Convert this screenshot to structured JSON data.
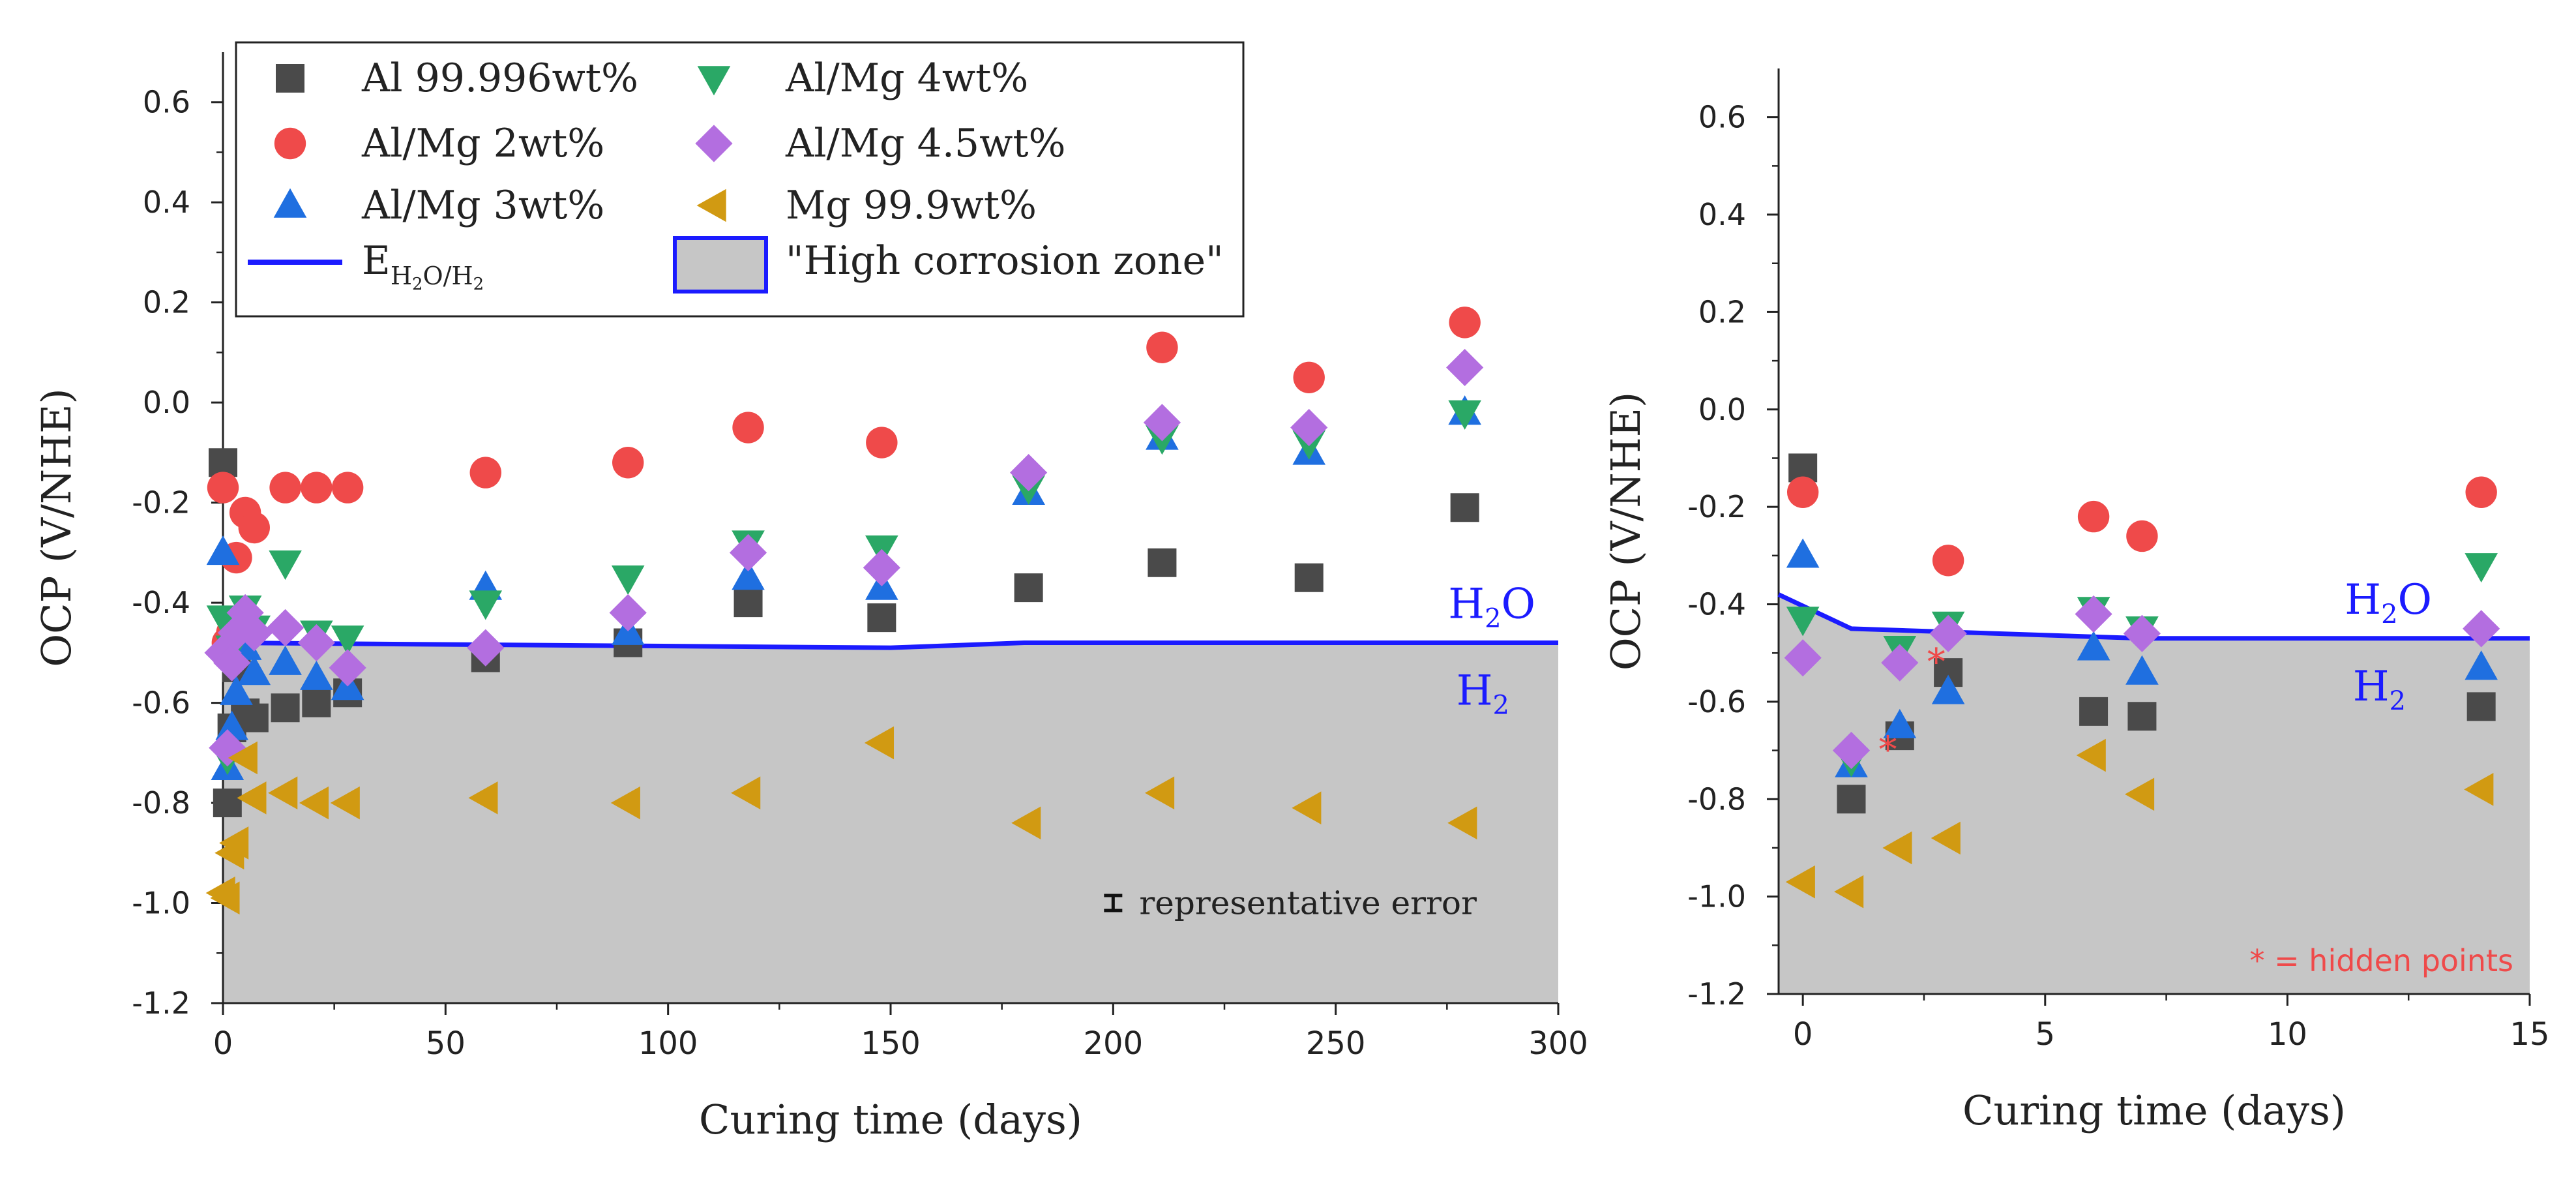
{
  "chart_data": [
    {
      "type": "scatter",
      "xlabel": "Curing time (days)",
      "ylabel": "OCP (V/NHE)",
      "xlim": [
        0,
        300
      ],
      "ylim": [
        -1.2,
        0.7
      ],
      "xticks": [
        0,
        50,
        100,
        150,
        200,
        250,
        300
      ],
      "yticks": [
        -1.2,
        -1.0,
        -0.8,
        -0.6,
        -0.4,
        -0.2,
        0.0,
        0.2,
        0.4,
        0.6
      ],
      "ytick_labels": [
        "-1.2",
        "-1.0",
        "-0.8",
        "-0.6",
        "-0.4",
        "-0.2",
        "0.0",
        "0.2",
        "0.4",
        "0.6"
      ],
      "xtick_labels": [
        "0",
        "50",
        "100",
        "150",
        "200",
        "250",
        "300"
      ],
      "legend_position": "top-left",
      "series": [
        {
          "name": "Al 99.996wt%",
          "marker": "square",
          "color": "#4a4a4a",
          "x": [
            0,
            1,
            2,
            3,
            5,
            7,
            14,
            21,
            28,
            59,
            91,
            118,
            148,
            181,
            211,
            244,
            279
          ],
          "y": [
            -0.12,
            -0.8,
            -0.65,
            -0.53,
            -0.62,
            -0.63,
            -0.61,
            -0.6,
            -0.58,
            -0.51,
            -0.48,
            -0.4,
            -0.43,
            -0.37,
            -0.32,
            -0.35,
            -0.21
          ]
        },
        {
          "name": "Al/Mg 2wt%",
          "marker": "circle",
          "color": "#ef4a4a",
          "x": [
            0,
            1,
            2,
            3,
            5,
            7,
            14,
            21,
            28,
            59,
            91,
            118,
            148,
            211,
            244,
            279
          ],
          "y": [
            -0.17,
            -0.48,
            -0.46,
            -0.31,
            -0.22,
            -0.25,
            -0.17,
            -0.17,
            -0.17,
            -0.14,
            -0.12,
            -0.05,
            -0.08,
            0.11,
            0.05,
            0.16
          ]
        },
        {
          "name": "Al/Mg 3wt%",
          "marker": "triangle-up",
          "color": "#1f6fe0",
          "x": [
            0,
            1,
            2,
            3,
            5,
            7,
            14,
            21,
            28,
            59,
            91,
            118,
            148,
            181,
            211,
            244,
            279
          ],
          "y": [
            -0.3,
            -0.73,
            -0.65,
            -0.58,
            -0.49,
            -0.54,
            -0.52,
            -0.55,
            -0.57,
            -0.37,
            -0.46,
            -0.35,
            -0.37,
            -0.18,
            -0.07,
            -0.1,
            -0.02
          ]
        },
        {
          "name": "Al/Mg 4wt%",
          "marker": "triangle-down",
          "color": "#2aa866",
          "x": [
            0,
            1,
            2,
            3,
            5,
            7,
            14,
            21,
            28,
            59,
            91,
            118,
            148,
            181,
            211,
            244,
            279
          ],
          "y": [
            -0.43,
            -0.71,
            -0.49,
            -0.44,
            -0.41,
            -0.45,
            -0.32,
            -0.46,
            -0.47,
            -0.4,
            -0.35,
            -0.28,
            -0.29,
            -0.17,
            -0.07,
            -0.08,
            -0.02
          ]
        },
        {
          "name": "Al/Mg 4.5wt%",
          "marker": "diamond",
          "color": "#b36ee0",
          "x": [
            0,
            1,
            2,
            3,
            5,
            7,
            14,
            21,
            28,
            59,
            91,
            118,
            148,
            181,
            211,
            244,
            279
          ],
          "y": [
            -0.5,
            -0.69,
            -0.52,
            -0.46,
            -0.42,
            -0.46,
            -0.45,
            -0.48,
            -0.53,
            -0.49,
            -0.42,
            -0.3,
            -0.33,
            -0.14,
            -0.04,
            -0.05,
            0.07
          ]
        },
        {
          "name": "Mg 99.9wt%",
          "marker": "triangle-left",
          "color": "#d19a12",
          "x": [
            0,
            1,
            2,
            3,
            5,
            7,
            14,
            21,
            28,
            59,
            91,
            118,
            148,
            181,
            211,
            244,
            279
          ],
          "y": [
            -0.98,
            -0.99,
            -0.9,
            -0.88,
            -0.71,
            -0.79,
            -0.78,
            -0.8,
            -0.8,
            -0.79,
            -0.8,
            -0.78,
            -0.68,
            -0.84,
            -0.78,
            -0.81,
            -0.84
          ]
        }
      ],
      "reference_line": {
        "name": "E_H2O/H2",
        "color": "#1b1bff",
        "x": [
          0,
          150,
          180,
          300
        ],
        "y": [
          -0.48,
          -0.49,
          -0.48,
          -0.48
        ]
      },
      "zone": {
        "name": "\"High corrosion zone\"",
        "fill": "#c6c6c6",
        "border": "#1b1bff"
      },
      "line_labels": {
        "upper": "H",
        "upper_sub": "2",
        "upper_tail": "O",
        "lower": "H",
        "lower_sub": "2"
      },
      "annotation": "representative error",
      "error_bar": {
        "x": 200,
        "y": -1.0,
        "half": 0.015
      }
    },
    {
      "type": "scatter",
      "xlabel": "Curing time (days)",
      "ylabel": "OCP (V/NHE)",
      "xlim": [
        -0.5,
        15
      ],
      "ylim": [
        -1.2,
        0.7
      ],
      "xticks": [
        0,
        5,
        10,
        15
      ],
      "xtick_labels": [
        "0",
        "5",
        "10",
        "15"
      ],
      "yticks": [
        -1.2,
        -1.0,
        -0.8,
        -0.6,
        -0.4,
        -0.2,
        0.0,
        0.2,
        0.4,
        0.6
      ],
      "ytick_labels": [
        "-1.2",
        "-1.0",
        "-0.8",
        "-0.6",
        "-0.4",
        "-0.2",
        "0.0",
        "0.2",
        "0.4",
        "0.6"
      ],
      "series": [
        {
          "name": "Al 99.996wt%",
          "marker": "square",
          "color": "#4a4a4a",
          "x": [
            0,
            1,
            2,
            3,
            6,
            7,
            14
          ],
          "y": [
            -0.12,
            -0.8,
            -0.67,
            -0.54,
            -0.62,
            -0.63,
            -0.61
          ]
        },
        {
          "name": "Al/Mg 2wt%",
          "marker": "circle",
          "color": "#ef4a4a",
          "x": [
            0,
            3,
            6,
            7,
            14
          ],
          "y": [
            -0.17,
            -0.31,
            -0.22,
            -0.26,
            -0.17
          ]
        },
        {
          "name": "Al/Mg 3wt%",
          "marker": "triangle-up",
          "color": "#1f6fe0",
          "x": [
            0,
            1,
            2,
            3,
            6,
            7,
            14
          ],
          "y": [
            -0.3,
            -0.73,
            -0.65,
            -0.58,
            -0.49,
            -0.54,
            -0.53
          ]
        },
        {
          "name": "Al/Mg 4wt%",
          "marker": "triangle-down",
          "color": "#2aa866",
          "x": [
            0,
            1,
            2,
            3,
            6,
            7,
            14
          ],
          "y": [
            -0.43,
            -0.72,
            -0.49,
            -0.44,
            -0.41,
            -0.45,
            -0.32
          ]
        },
        {
          "name": "Al/Mg 4.5wt%",
          "marker": "diamond",
          "color": "#b36ee0",
          "x": [
            0,
            1,
            2,
            3,
            6,
            7,
            14
          ],
          "y": [
            -0.51,
            -0.7,
            -0.52,
            -0.46,
            -0.42,
            -0.46,
            -0.45
          ]
        },
        {
          "name": "Mg 99.9wt%",
          "marker": "triangle-left",
          "color": "#d19a12",
          "x": [
            0,
            1,
            2,
            3,
            6,
            7,
            14
          ],
          "y": [
            -0.97,
            -0.99,
            -0.9,
            -0.88,
            -0.71,
            -0.79,
            -0.78
          ]
        }
      ],
      "reference_line": {
        "name": "E_H2O/H2",
        "color": "#1b1bff",
        "x": [
          -0.5,
          1,
          7,
          15
        ],
        "y": [
          -0.38,
          -0.45,
          -0.47,
          -0.47
        ]
      },
      "zone": {
        "fill": "#c6c6c6"
      },
      "line_labels": {
        "upper": "H",
        "upper_sub": "2",
        "upper_tail": "O",
        "lower": "H",
        "lower_sub": "2"
      },
      "hidden_marks": [
        {
          "x": 2,
          "y": -0.52
        },
        {
          "x": 1,
          "y": -0.7
        }
      ],
      "annotation": "* = hidden points",
      "annotation_color": "#ef4a4a",
      "hidden_mark_symbol": "*"
    }
  ],
  "legend": {
    "items": [
      {
        "label": "Al 99.996wt%",
        "marker": "square",
        "color": "#4a4a4a"
      },
      {
        "label": "Al/Mg 4wt%",
        "marker": "triangle-down",
        "color": "#2aa866"
      },
      {
        "label": "Al/Mg 2wt%",
        "marker": "circle",
        "color": "#ef4a4a"
      },
      {
        "label": "Al/Mg 4.5wt%",
        "marker": "diamond",
        "color": "#b36ee0"
      },
      {
        "label": "Al/Mg 3wt%",
        "marker": "triangle-up",
        "color": "#1f6fe0"
      },
      {
        "label": "Mg 99.9wt%",
        "marker": "triangle-left",
        "color": "#d19a12"
      }
    ],
    "line_entry": {
      "main": "E",
      "sub": "H",
      "sub2": "2",
      "sub3": "O/H",
      "sub4": "2"
    },
    "zone_entry": "\"High corrosion zone\""
  }
}
